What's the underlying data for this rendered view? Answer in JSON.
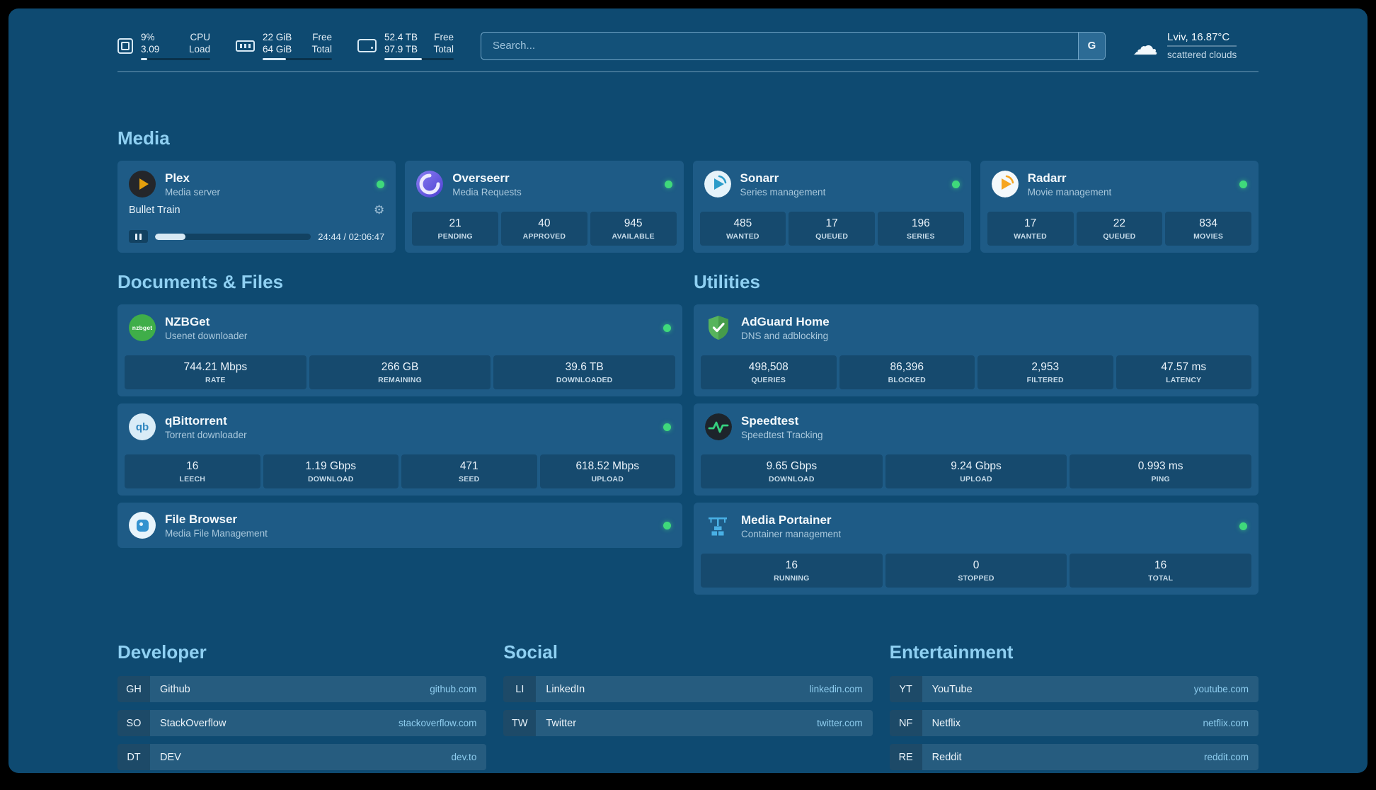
{
  "icons": {
    "cloud": "☁",
    "gear": "⚙",
    "nzbget_logo_text": "nzbget",
    "qbittorrent_logo_text": "qb"
  },
  "colors": {
    "background": "#0e4a71",
    "card": "#1e5b86",
    "accent_text": "#8fd0f2",
    "status_online": "#3fd97b",
    "plex_brand": "#e5a00d"
  },
  "topbar": {
    "cpu": {
      "value_top": "9%",
      "value_bottom": "3.09",
      "label_top": "CPU",
      "label_bottom": "Load",
      "bar_percent": 9
    },
    "memory": {
      "value_top": "22 GiB",
      "value_bottom": "64 GiB",
      "label_top": "Free",
      "label_bottom": "Total",
      "bar_percent": 34
    },
    "disk": {
      "value_top": "52.4 TB",
      "value_bottom": "97.9 TB",
      "label_top": "Free",
      "label_bottom": "Total",
      "bar_percent": 54
    },
    "search": {
      "placeholder": "Search...",
      "button_label": "G"
    },
    "weather": {
      "location_temp": "Lviv, 16.87°C",
      "condition": "scattered clouds"
    }
  },
  "sections": {
    "media": "Media",
    "documents": "Documents & Files",
    "utilities": "Utilities",
    "developer": "Developer",
    "social": "Social",
    "entertainment": "Entertainment"
  },
  "services": {
    "plex": {
      "name": "Plex",
      "desc": "Media server",
      "now_playing": "Bullet Train",
      "time": "24:44 / 02:06:47",
      "progress_percent": 19.5
    },
    "overseerr": {
      "name": "Overseerr",
      "desc": "Media Requests",
      "stats": [
        {
          "value": "21",
          "label": "PENDING"
        },
        {
          "value": "40",
          "label": "APPROVED"
        },
        {
          "value": "945",
          "label": "AVAILABLE"
        }
      ]
    },
    "sonarr": {
      "name": "Sonarr",
      "desc": "Series management",
      "stats": [
        {
          "value": "485",
          "label": "WANTED"
        },
        {
          "value": "17",
          "label": "QUEUED"
        },
        {
          "value": "196",
          "label": "SERIES"
        }
      ]
    },
    "radarr": {
      "name": "Radarr",
      "desc": "Movie management",
      "stats": [
        {
          "value": "17",
          "label": "WANTED"
        },
        {
          "value": "22",
          "label": "QUEUED"
        },
        {
          "value": "834",
          "label": "MOVIES"
        }
      ]
    },
    "nzbget": {
      "name": "NZBGet",
      "desc": "Usenet downloader",
      "stats": [
        {
          "value": "744.21 Mbps",
          "label": "RATE"
        },
        {
          "value": "266 GB",
          "label": "REMAINING"
        },
        {
          "value": "39.6 TB",
          "label": "DOWNLOADED"
        }
      ]
    },
    "qbittorrent": {
      "name": "qBittorrent",
      "desc": "Torrent downloader",
      "stats": [
        {
          "value": "16",
          "label": "LEECH"
        },
        {
          "value": "1.19 Gbps",
          "label": "DOWNLOAD"
        },
        {
          "value": "471",
          "label": "SEED"
        },
        {
          "value": "618.52 Mbps",
          "label": "UPLOAD"
        }
      ]
    },
    "filebrowser": {
      "name": "File Browser",
      "desc": "Media File Management"
    },
    "adguard": {
      "name": "AdGuard Home",
      "desc": "DNS and adblocking",
      "stats": [
        {
          "value": "498,508",
          "label": "QUERIES"
        },
        {
          "value": "86,396",
          "label": "BLOCKED"
        },
        {
          "value": "2,953",
          "label": "FILTERED"
        },
        {
          "value": "47.57 ms",
          "label": "LATENCY"
        }
      ]
    },
    "speedtest": {
      "name": "Speedtest",
      "desc": "Speedtest Tracking",
      "stats": [
        {
          "value": "9.65 Gbps",
          "label": "DOWNLOAD"
        },
        {
          "value": "9.24 Gbps",
          "label": "UPLOAD"
        },
        {
          "value": "0.993 ms",
          "label": "PING"
        }
      ]
    },
    "portainer": {
      "name": "Media Portainer",
      "desc": "Container management",
      "stats": [
        {
          "value": "16",
          "label": "RUNNING"
        },
        {
          "value": "0",
          "label": "STOPPED"
        },
        {
          "value": "16",
          "label": "TOTAL"
        }
      ]
    }
  },
  "bookmarks": {
    "developer": [
      {
        "abbr": "GH",
        "name": "Github",
        "url": "github.com"
      },
      {
        "abbr": "SO",
        "name": "StackOverflow",
        "url": "stackoverflow.com"
      },
      {
        "abbr": "DT",
        "name": "DEV",
        "url": "dev.to"
      }
    ],
    "social": [
      {
        "abbr": "LI",
        "name": "LinkedIn",
        "url": "linkedin.com"
      },
      {
        "abbr": "TW",
        "name": "Twitter",
        "url": "twitter.com"
      }
    ],
    "entertainment": [
      {
        "abbr": "YT",
        "name": "YouTube",
        "url": "youtube.com"
      },
      {
        "abbr": "NF",
        "name": "Netflix",
        "url": "netflix.com"
      },
      {
        "abbr": "RE",
        "name": "Reddit",
        "url": "reddit.com"
      }
    ]
  }
}
